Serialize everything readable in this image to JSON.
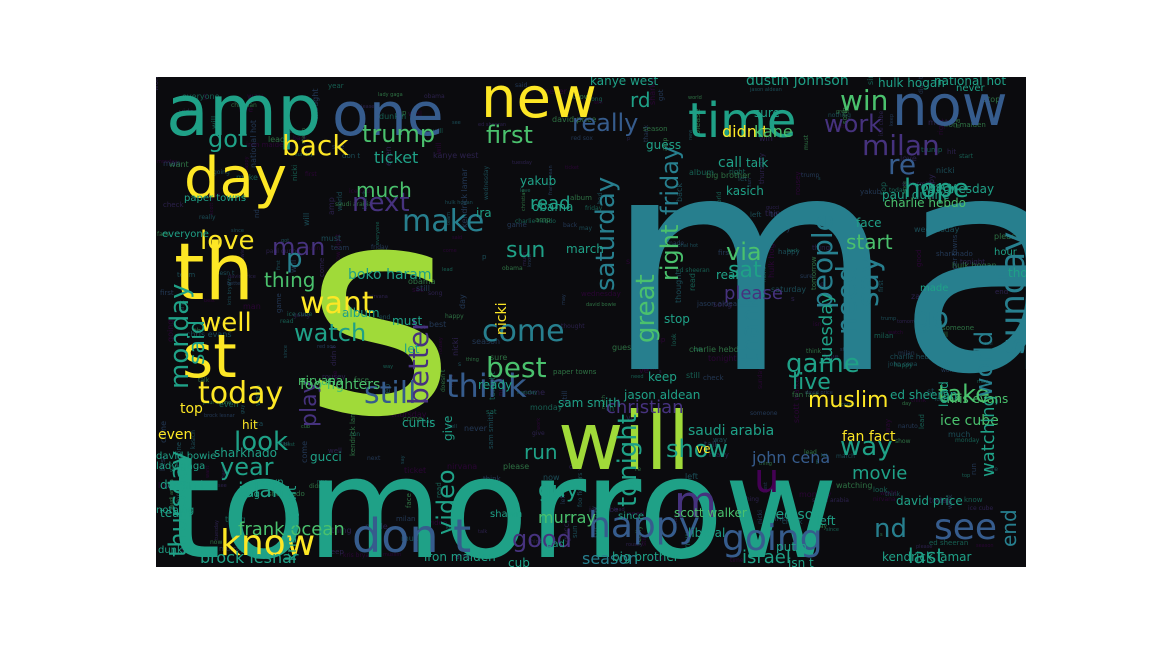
{
  "palette": {
    "background": "#0b0b0e",
    "yellow": "#fde725",
    "lime": "#a0da39",
    "green": "#4ac16d",
    "teal": "#1fa187",
    "cyan": "#277f8e",
    "blue": "#365c8d",
    "indigo": "#46327e",
    "purple": "#440154"
  },
  "words": [
    {
      "text": "may",
      "color": "cyan"
    },
    {
      "text": "s",
      "color": "lime"
    },
    {
      "text": "tomorrow",
      "color": "teal"
    },
    {
      "text": "will",
      "color": "lime"
    },
    {
      "text": "amp",
      "color": "teal"
    },
    {
      "text": "one",
      "color": "blue"
    },
    {
      "text": "new",
      "color": "yellow"
    },
    {
      "text": "time",
      "color": "teal"
    },
    {
      "text": "now",
      "color": "blue"
    },
    {
      "text": "day",
      "color": "yellow"
    },
    {
      "text": "th",
      "color": "yellow"
    },
    {
      "text": "st",
      "color": "yellow"
    },
    {
      "text": "don t",
      "color": "blue"
    },
    {
      "text": "happy",
      "color": "blue"
    },
    {
      "text": "going",
      "color": "blue"
    },
    {
      "text": "see",
      "color": "blue"
    },
    {
      "text": "know",
      "color": "yellow"
    },
    {
      "text": "today",
      "color": "yellow"
    },
    {
      "text": "want",
      "color": "yellow"
    },
    {
      "text": "well",
      "color": "yellow"
    },
    {
      "text": "still",
      "color": "blue"
    },
    {
      "text": "think",
      "color": "blue"
    },
    {
      "text": "best",
      "color": "green"
    },
    {
      "text": "come",
      "color": "cyan"
    },
    {
      "text": "back",
      "color": "yellow"
    },
    {
      "text": "trump",
      "color": "green"
    },
    {
      "text": "first",
      "color": "green"
    },
    {
      "text": "got",
      "color": "teal"
    },
    {
      "text": "make",
      "color": "cyan"
    },
    {
      "text": "love",
      "color": "yellow"
    },
    {
      "text": "win",
      "color": "green"
    },
    {
      "text": "work",
      "color": "indigo"
    },
    {
      "text": "milan",
      "color": "indigo"
    },
    {
      "text": "re",
      "color": "blue"
    },
    {
      "text": "hope",
      "color": "teal"
    },
    {
      "text": "via",
      "color": "green"
    },
    {
      "text": "sun",
      "color": "teal"
    },
    {
      "text": "sat",
      "color": "teal"
    },
    {
      "text": "people",
      "color": "cyan"
    },
    {
      "text": "need",
      "color": "cyan"
    },
    {
      "text": "say",
      "color": "cyan"
    },
    {
      "text": "go",
      "color": "cyan"
    },
    {
      "text": "sunday",
      "color": "cyan"
    },
    {
      "text": "game",
      "color": "teal"
    },
    {
      "text": "live",
      "color": "teal"
    },
    {
      "text": "take",
      "color": "green"
    },
    {
      "text": "muslim",
      "color": "yellow"
    },
    {
      "text": "monday",
      "color": "teal"
    },
    {
      "text": "said",
      "color": "teal"
    },
    {
      "text": "watch",
      "color": "teal"
    },
    {
      "text": "look",
      "color": "teal"
    },
    {
      "text": "year",
      "color": "teal"
    },
    {
      "text": "thursday",
      "color": "teal"
    },
    {
      "text": "islam",
      "color": "teal"
    },
    {
      "text": "frank ocean",
      "color": "green"
    },
    {
      "text": "brock lesnar",
      "color": "teal"
    },
    {
      "text": "play",
      "color": "indigo"
    },
    {
      "text": "video",
      "color": "teal"
    },
    {
      "text": "good",
      "color": "indigo"
    },
    {
      "text": "guy",
      "color": "teal"
    },
    {
      "text": "run",
      "color": "teal"
    },
    {
      "text": "show",
      "color": "teal"
    },
    {
      "text": "tonight",
      "color": "teal"
    },
    {
      "text": "better",
      "color": "indigo"
    },
    {
      "text": "saturday",
      "color": "cyan"
    },
    {
      "text": "friday",
      "color": "cyan"
    },
    {
      "text": "great",
      "color": "green"
    },
    {
      "text": "right",
      "color": "green"
    },
    {
      "text": "thank",
      "color": "cyan"
    },
    {
      "text": "way",
      "color": "teal"
    },
    {
      "text": "m",
      "color": "indigo"
    },
    {
      "text": "u",
      "color": "purple"
    },
    {
      "text": "movie",
      "color": "teal"
    },
    {
      "text": "nd",
      "color": "cyan"
    },
    {
      "text": "last",
      "color": "teal"
    },
    {
      "text": "israel",
      "color": "teal"
    },
    {
      "text": "season",
      "color": "cyan"
    },
    {
      "text": "murray",
      "color": "green"
    },
    {
      "text": "christian",
      "color": "indigo"
    },
    {
      "text": "john cena",
      "color": "blue"
    },
    {
      "text": "ice cube",
      "color": "green"
    },
    {
      "text": "next",
      "color": "indigo"
    },
    {
      "text": "much",
      "color": "green"
    },
    {
      "text": "thing",
      "color": "green"
    },
    {
      "text": "man",
      "color": "indigo"
    },
    {
      "text": "p",
      "color": "cyan"
    },
    {
      "text": "really",
      "color": "blue"
    },
    {
      "text": "world",
      "color": "cyan"
    },
    {
      "text": "start",
      "color": "green"
    },
    {
      "text": "please",
      "color": "indigo"
    },
    {
      "text": "tuesday",
      "color": "teal"
    },
    {
      "text": "watching",
      "color": "teal"
    },
    {
      "text": "end",
      "color": "cyan"
    },
    {
      "text": "fan fact",
      "color": "yellow"
    },
    {
      "text": "dustin johnson",
      "color": "teal"
    },
    {
      "text": "kanye west",
      "color": "teal"
    },
    {
      "text": "national hot",
      "color": "teal"
    },
    {
      "text": "rd",
      "color": "teal"
    },
    {
      "text": "ticket",
      "color": "teal"
    },
    {
      "text": "didn t",
      "color": "yellow"
    },
    {
      "text": "kane",
      "color": "green"
    },
    {
      "text": "read",
      "color": "teal"
    },
    {
      "text": "chris evans",
      "color": "green"
    },
    {
      "text": "scott walker",
      "color": "green"
    },
    {
      "text": "red sox",
      "color": "teal"
    },
    {
      "text": "sam smith",
      "color": "teal"
    },
    {
      "text": "ed sheeran",
      "color": "teal"
    },
    {
      "text": "boko haram",
      "color": "teal"
    },
    {
      "text": "nirvana",
      "color": "green"
    },
    {
      "text": "david price",
      "color": "teal"
    },
    {
      "text": "kendrick lamar",
      "color": "teal"
    },
    {
      "text": "big brother",
      "color": "teal"
    },
    {
      "text": "iron maiden",
      "color": "teal"
    },
    {
      "text": "kris bryant",
      "color": "teal"
    },
    {
      "text": "foo fighters",
      "color": "green"
    },
    {
      "text": "top",
      "color": "yellow"
    },
    {
      "text": "hit",
      "color": "yellow"
    },
    {
      "text": "even",
      "color": "yellow"
    },
    {
      "text": "nicki",
      "color": "yellow"
    },
    {
      "text": "jason aldean",
      "color": "teal"
    },
    {
      "text": "sharknado",
      "color": "teal"
    },
    {
      "text": "saudi arabia",
      "color": "teal"
    },
    {
      "text": "ve",
      "color": "yellow"
    },
    {
      "text": "give",
      "color": "teal"
    },
    {
      "text": "call",
      "color": "teal"
    },
    {
      "text": "charlie hebdo",
      "color": "green"
    },
    {
      "text": "obama",
      "color": "teal"
    },
    {
      "text": "yakub",
      "color": "teal"
    },
    {
      "text": "gucci",
      "color": "teal"
    },
    {
      "text": "dunkin",
      "color": "teal"
    },
    {
      "text": "cub",
      "color": "teal"
    },
    {
      "text": "isn t",
      "color": "teal"
    },
    {
      "text": "doesn t",
      "color": "teal"
    },
    {
      "text": "team",
      "color": "teal"
    },
    {
      "text": "album",
      "color": "teal"
    },
    {
      "text": "must",
      "color": "teal"
    },
    {
      "text": "let",
      "color": "teal"
    },
    {
      "text": "keep",
      "color": "teal"
    },
    {
      "text": "left",
      "color": "teal"
    },
    {
      "text": "lead",
      "color": "teal"
    },
    {
      "text": "paul dunne",
      "color": "teal"
    },
    {
      "text": "rousey",
      "color": "teal"
    },
    {
      "text": "thought",
      "color": "teal"
    },
    {
      "text": "sure",
      "color": "teal"
    },
    {
      "text": "stop",
      "color": "teal"
    },
    {
      "text": "putin",
      "color": "teal"
    },
    {
      "text": "kasich",
      "color": "teal"
    },
    {
      "text": "paper towns",
      "color": "teal"
    },
    {
      "text": "everyone",
      "color": "teal"
    },
    {
      "text": "zayn",
      "color": "teal"
    },
    {
      "text": "curtis",
      "color": "teal"
    },
    {
      "text": "liberal",
      "color": "teal"
    },
    {
      "text": "naruto",
      "color": "teal"
    },
    {
      "text": "ready",
      "color": "teal"
    },
    {
      "text": "hour",
      "color": "teal"
    },
    {
      "text": "hulk hogan",
      "color": "teal"
    },
    {
      "text": "lady gaga",
      "color": "teal"
    },
    {
      "text": "david bowie",
      "color": "teal"
    },
    {
      "text": "nothing",
      "color": "teal"
    },
    {
      "text": "bad",
      "color": "teal"
    },
    {
      "text": "ira",
      "color": "teal"
    },
    {
      "text": "guess",
      "color": "teal"
    },
    {
      "text": "talk",
      "color": "teal"
    },
    {
      "text": "real",
      "color": "teal"
    },
    {
      "text": "march",
      "color": "teal"
    },
    {
      "text": "wednesday",
      "color": "teal"
    },
    {
      "text": "face",
      "color": "teal"
    },
    {
      "text": "song",
      "color": "teal"
    },
    {
      "text": "made",
      "color": "teal"
    },
    {
      "text": "since",
      "color": "teal"
    },
    {
      "text": "shawn",
      "color": "teal"
    },
    {
      "text": "never",
      "color": "teal"
    },
    {
      "text": "check",
      "color": "teal"
    },
    {
      "text": "someone",
      "color": "teal"
    },
    {
      "text": "tomorrow night",
      "color": "teal"
    }
  ]
}
